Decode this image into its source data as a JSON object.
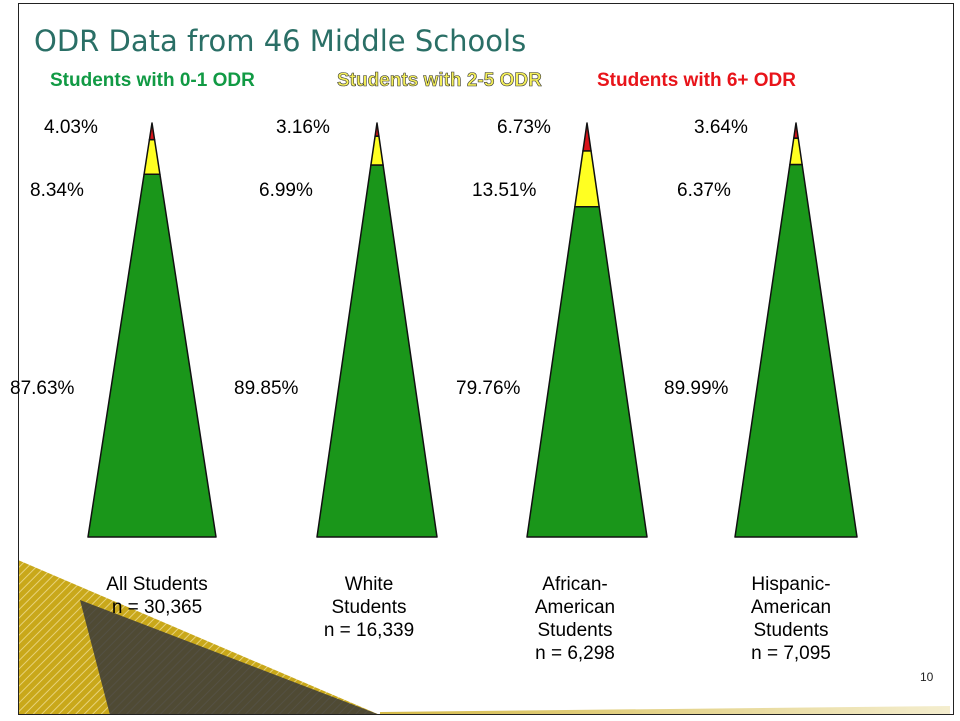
{
  "slide": {
    "title": "ODR Data from 46 Middle Schools",
    "page_number": "10"
  },
  "colors": {
    "green": "#1a961a",
    "yellow": "#ffff22",
    "red": "#d8141a",
    "title": "#2a6f66",
    "decoration": "#c9a81a"
  },
  "chart_data": {
    "type": "stacked-triangle",
    "title": "ODR Data from 46 Middle Schools",
    "legend": [
      {
        "label": "Students with 0-1 ODR",
        "color": "#119a44"
      },
      {
        "label": "Students with 2-5 ODR",
        "color": "#ffff22"
      },
      {
        "label": "Students with 6+ ODR",
        "color": "#e8141a"
      }
    ],
    "groups": [
      {
        "caption": [
          "All Students",
          "n = 30,365"
        ],
        "values": [
          87.63,
          8.34,
          4.03
        ],
        "labels": [
          "87.63%",
          "8.34%",
          "4.03%"
        ]
      },
      {
        "caption": [
          "White",
          "Students",
          "n = 16,339"
        ],
        "values": [
          89.85,
          6.99,
          3.16
        ],
        "labels": [
          "89.85%",
          "6.99%",
          "3.16%"
        ]
      },
      {
        "caption": [
          "African-",
          "American",
          "Students",
          "n = 6,298"
        ],
        "values": [
          79.76,
          13.51,
          6.73
        ],
        "labels": [
          "79.76%",
          "13.51%",
          "6.73%"
        ]
      },
      {
        "caption": [
          "Hispanic-",
          "American",
          "Students",
          "n = 7,095"
        ],
        "values": [
          89.99,
          6.37,
          3.64
        ],
        "labels": [
          "89.99%",
          "6.37%",
          "3.64%"
        ]
      }
    ]
  }
}
